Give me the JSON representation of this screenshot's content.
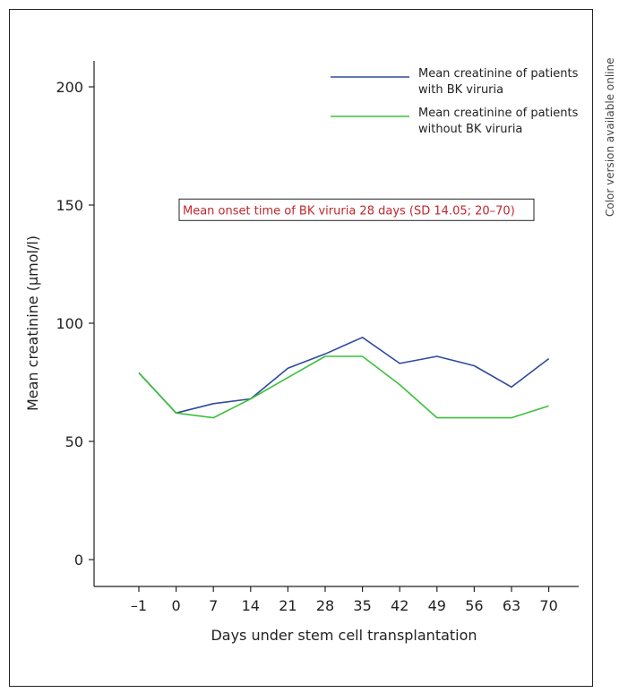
{
  "side_note": "Color version available online",
  "colors": {
    "with_bk": "#2e4a9e",
    "without_bk": "#3cc13c",
    "annotation": "#c0282d",
    "axis": "#222222"
  },
  "chart_data": {
    "type": "line",
    "title": "",
    "xlabel": "Days under stem cell transplantation",
    "ylabel": "Mean creatinine (μmol/l)",
    "categories": [
      "–1",
      "0",
      "7",
      "14",
      "21",
      "28",
      "35",
      "42",
      "49",
      "56",
      "63",
      "70"
    ],
    "ylim": [
      0,
      200
    ],
    "yticks": [
      0,
      50,
      100,
      150,
      200
    ],
    "grid": false,
    "legend_position": "top-right",
    "series": [
      {
        "name": "Mean creatinine of patients with BK viruria",
        "legend_lines": [
          "Mean creatinine of patients",
          "with BK viruria"
        ],
        "color": "#2e4a9e",
        "values": [
          79,
          62,
          66,
          68,
          81,
          87,
          94,
          83,
          86,
          82,
          73,
          85
        ]
      },
      {
        "name": "Mean creatinine of patients without BK viruria",
        "legend_lines": [
          "Mean creatinine of patients",
          "without BK viruria"
        ],
        "color": "#3cc13c",
        "values": [
          79,
          62,
          60,
          68,
          77,
          86,
          86,
          74,
          60,
          60,
          60,
          65
        ]
      }
    ],
    "annotation": {
      "text": "Mean onset time of BK viruria 28 days (SD 14.05; 20–70)",
      "x": "21",
      "y": 148
    }
  }
}
